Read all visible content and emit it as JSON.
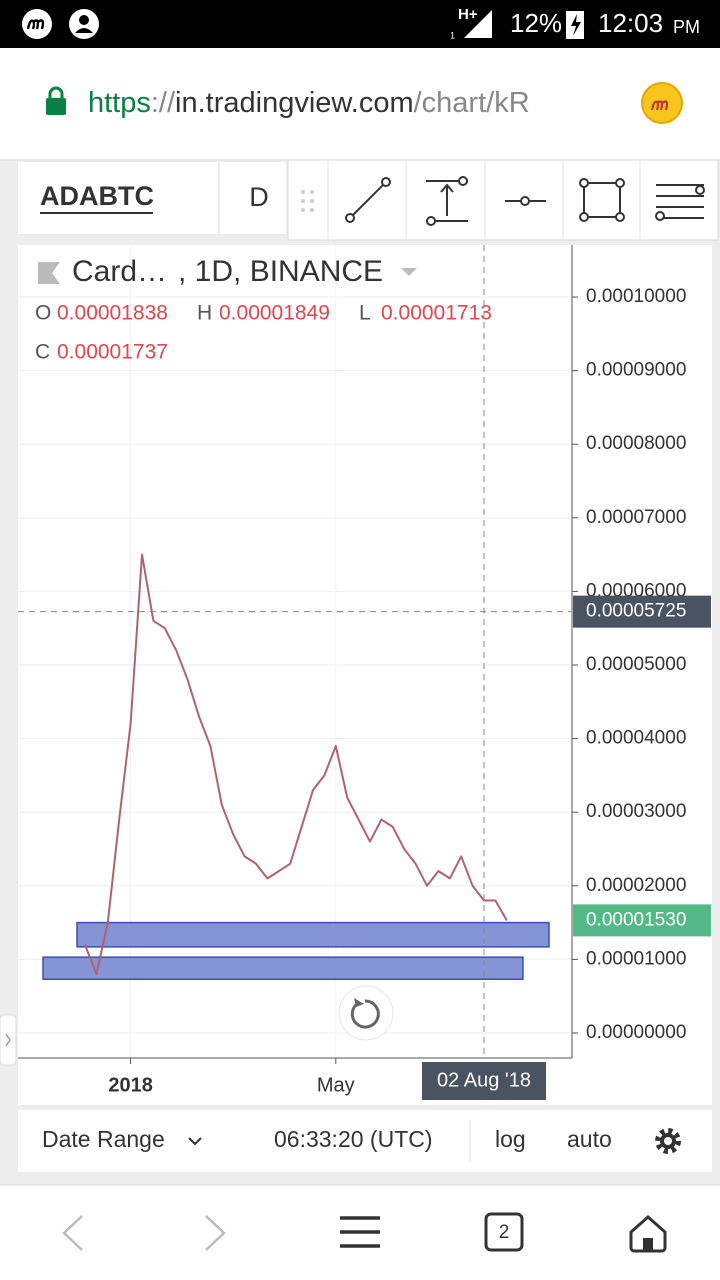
{
  "status_bar": {
    "network": "H+",
    "network_sub": "1",
    "battery": "12%",
    "time": "12:03",
    "ampm": "PM"
  },
  "url": {
    "scheme": "https",
    "sep": "://",
    "host": "in.tradingview.com",
    "path": "/chart/kR"
  },
  "toolbar": {
    "symbol": "ADABTC",
    "interval": "D"
  },
  "chart_data": {
    "type": "line",
    "title": "Card…",
    "subtitle": ", 1D, BINANCE",
    "ohlc": [
      {
        "name": "O",
        "value": 1.838e-05
      },
      {
        "name": "H",
        "value": 1.849e-05
      },
      {
        "name": "L",
        "value": 1.713e-05
      },
      {
        "name": "C",
        "value": 1.737e-05
      }
    ],
    "categories": [
      null,
      null,
      null,
      null,
      "2018",
      null,
      null,
      null,
      null,
      null,
      null,
      null,
      null,
      null,
      null,
      null,
      null,
      null,
      null,
      null,
      null,
      null,
      "May",
      null,
      null,
      null,
      null,
      null,
      null,
      null,
      null,
      null,
      null,
      null,
      null,
      "02 Aug '18",
      null,
      null
    ],
    "values": [
      1.2e-05,
      8e-06,
      1.5e-05,
      2.9e-05,
      4.2e-05,
      6.5e-05,
      5.6e-05,
      5.5e-05,
      5.2e-05,
      4.8e-05,
      4.3e-05,
      3.9e-05,
      3.1e-05,
      2.7e-05,
      2.4e-05,
      2.3e-05,
      2.1e-05,
      2.2e-05,
      2.3e-05,
      2.8e-05,
      3.3e-05,
      3.5e-05,
      3.9e-05,
      3.2e-05,
      2.9e-05,
      2.6e-05,
      2.9e-05,
      2.8e-05,
      2.5e-05,
      2.3e-05,
      2e-05,
      2.2e-05,
      2.1e-05,
      2.4e-05,
      2e-05,
      1.8e-05,
      1.8e-05,
      1.53e-05
    ],
    "color": "#b0636b",
    "ylim": [
      -3.4e-06,
      0.00010707
    ],
    "yticks": [
      {
        "value": 0,
        "label": "0.00000000"
      },
      {
        "value": 1e-05,
        "label": "0.00001000"
      },
      {
        "value": 2e-05,
        "label": "0.00002000"
      },
      {
        "value": 3e-05,
        "label": "0.00003000"
      },
      {
        "value": 4e-05,
        "label": "0.00004000"
      },
      {
        "value": 5e-05,
        "label": "0.00005000"
      },
      {
        "value": 6e-05,
        "label": "0.00006000"
      },
      {
        "value": 7e-05,
        "label": "0.00007000"
      },
      {
        "value": 8e-05,
        "label": "0.00008000"
      },
      {
        "value": 9e-05,
        "label": "0.00009000"
      },
      {
        "value": 0.0001,
        "label": "0.00010000"
      }
    ],
    "grid": true,
    "last_price": {
      "value": 1.53e-05,
      "label": "0.00001530"
    },
    "crosshair": {
      "value": 5.725e-05,
      "label": "0.00005725"
    },
    "zones": [
      {
        "low": 1.17e-05,
        "high": 1.5e-05,
        "color": "#7080d0"
      },
      {
        "low": 7.3e-06,
        "high": 1.03e-05,
        "color": "#7080d0"
      }
    ]
  },
  "bottom_bar": {
    "date_range": "Date Range",
    "time": "06:33:20 (UTC)",
    "log": "log",
    "auto": "auto"
  },
  "nav": {
    "tabs": "2"
  }
}
